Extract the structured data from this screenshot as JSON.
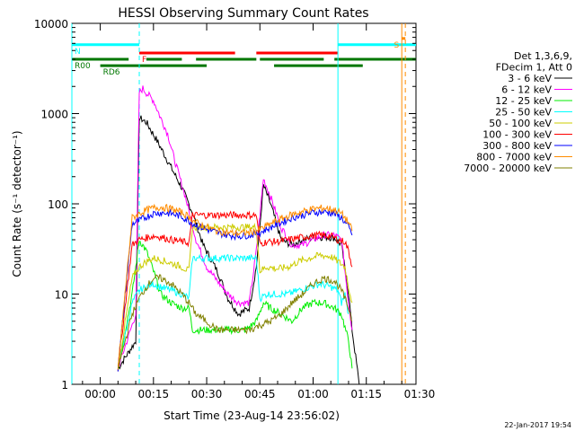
{
  "chart_data": {
    "type": "line",
    "title": "HESSI Observing Summary Count Rates",
    "xlabel": "Start Time (23-Aug-14 23:56:02)",
    "ylabel": "Count Rate (s⁻¹ detector⁻¹)",
    "ylog": true,
    "ylim": [
      1,
      10000
    ],
    "xlim_min": [
      -4,
      93
    ],
    "x_unit": "minutes after start",
    "x_ticks": [
      {
        "m": 4,
        "label": "00:00"
      },
      {
        "m": 19,
        "label": "00:15"
      },
      {
        "m": 34,
        "label": "00:30"
      },
      {
        "m": 49,
        "label": "00:45"
      },
      {
        "m": 64,
        "label": "01:00"
      },
      {
        "m": 79,
        "label": "01:15"
      },
      {
        "m": 94,
        "label": "01:30"
      }
    ],
    "y_ticks": [
      {
        "v": 1,
        "label": "1"
      },
      {
        "v": 10,
        "label": "10"
      },
      {
        "v": 100,
        "label": "100"
      },
      {
        "v": 1000,
        "label": "1000"
      },
      {
        "v": 10000,
        "label": "10000"
      }
    ],
    "legend_header": [
      "Det 1,3,6,9,",
      "FDecim 1, Att 0"
    ],
    "series": [
      {
        "name": "3 - 6 keV",
        "color": "#000000",
        "points": [
          [
            9,
            1.5
          ],
          [
            14,
            3
          ],
          [
            15,
            900
          ],
          [
            17,
            800
          ],
          [
            20,
            500
          ],
          [
            23,
            300
          ],
          [
            27,
            150
          ],
          [
            30,
            80
          ],
          [
            33,
            35
          ],
          [
            37,
            18
          ],
          [
            40,
            9
          ],
          [
            43,
            6
          ],
          [
            46,
            7
          ],
          [
            48,
            20
          ],
          [
            50,
            160
          ],
          [
            52,
            100
          ],
          [
            55,
            40
          ],
          [
            58,
            35
          ],
          [
            61,
            40
          ],
          [
            64,
            42
          ],
          [
            67,
            43
          ],
          [
            70,
            42
          ],
          [
            72,
            35
          ],
          [
            74,
            10
          ],
          [
            75,
            4
          ],
          [
            76,
            2
          ],
          [
            77,
            1
          ]
        ]
      },
      {
        "name": "6 - 12 keV",
        "color": "#ff00ff",
        "points": [
          [
            9,
            1.5
          ],
          [
            14,
            6
          ],
          [
            15,
            1700
          ],
          [
            16,
            1900
          ],
          [
            17,
            1700
          ],
          [
            19,
            1400
          ],
          [
            21,
            900
          ],
          [
            23,
            600
          ],
          [
            25,
            300
          ],
          [
            28,
            120
          ],
          [
            31,
            40
          ],
          [
            34,
            20
          ],
          [
            37,
            14
          ],
          [
            40,
            10
          ],
          [
            43,
            8
          ],
          [
            46,
            8
          ],
          [
            48,
            30
          ],
          [
            50,
            190
          ],
          [
            52,
            120
          ],
          [
            55,
            55
          ],
          [
            58,
            35
          ],
          [
            61,
            35
          ],
          [
            64,
            40
          ],
          [
            67,
            45
          ],
          [
            70,
            45
          ],
          [
            72,
            40
          ],
          [
            74,
            8
          ],
          [
            75,
            4
          ]
        ]
      },
      {
        "name": "12 - 25 keV",
        "color": "#00ee00",
        "points": [
          [
            9,
            1.5
          ],
          [
            13,
            10
          ],
          [
            15,
            40
          ],
          [
            17,
            30
          ],
          [
            19,
            18
          ],
          [
            21,
            10
          ],
          [
            24,
            8
          ],
          [
            27,
            7
          ],
          [
            29,
            7
          ],
          [
            30,
            4
          ],
          [
            33,
            4
          ],
          [
            36,
            4
          ],
          [
            39,
            4
          ],
          [
            42,
            4
          ],
          [
            45,
            4
          ],
          [
            48,
            5
          ],
          [
            50,
            8
          ],
          [
            52,
            7
          ],
          [
            55,
            6
          ],
          [
            58,
            5
          ],
          [
            61,
            7
          ],
          [
            64,
            8
          ],
          [
            67,
            8
          ],
          [
            70,
            7
          ],
          [
            72,
            6
          ],
          [
            74,
            3
          ],
          [
            75,
            1.5
          ]
        ]
      },
      {
        "name": "25 - 50 keV",
        "color": "#00ffff",
        "points": [
          [
            9,
            1.5
          ],
          [
            13,
            8
          ],
          [
            15,
            11
          ],
          [
            17,
            12
          ],
          [
            19,
            13
          ],
          [
            21,
            12
          ],
          [
            24,
            11
          ],
          [
            27,
            10
          ],
          [
            29,
            9
          ],
          [
            30,
            25
          ],
          [
            33,
            25
          ],
          [
            36,
            25
          ],
          [
            39,
            25
          ],
          [
            42,
            25
          ],
          [
            45,
            25
          ],
          [
            48,
            25
          ],
          [
            49,
            9
          ],
          [
            51,
            10
          ],
          [
            54,
            10
          ],
          [
            57,
            10
          ],
          [
            60,
            11
          ],
          [
            63,
            12
          ],
          [
            66,
            13
          ],
          [
            69,
            12
          ],
          [
            71,
            11
          ],
          [
            72,
            8
          ],
          [
            73,
            10
          ],
          [
            74,
            6
          ]
        ]
      },
      {
        "name": "50 - 100 keV",
        "color": "#cccc00",
        "points": [
          [
            9,
            1.5
          ],
          [
            13,
            15
          ],
          [
            15,
            20
          ],
          [
            17,
            23
          ],
          [
            19,
            25
          ],
          [
            21,
            24
          ],
          [
            24,
            22
          ],
          [
            27,
            20
          ],
          [
            29,
            18
          ],
          [
            30,
            55
          ],
          [
            33,
            55
          ],
          [
            36,
            55
          ],
          [
            39,
            55
          ],
          [
            42,
            55
          ],
          [
            45,
            55
          ],
          [
            48,
            55
          ],
          [
            49,
            18
          ],
          [
            51,
            20
          ],
          [
            54,
            19
          ],
          [
            57,
            20
          ],
          [
            60,
            23
          ],
          [
            63,
            25
          ],
          [
            66,
            27
          ],
          [
            69,
            26
          ],
          [
            71,
            23
          ],
          [
            73,
            20
          ],
          [
            74,
            12
          ],
          [
            75,
            8
          ]
        ]
      },
      {
        "name": "100 - 300 keV",
        "color": "#ff0000",
        "points": [
          [
            9,
            1.5
          ],
          [
            13,
            35
          ],
          [
            15,
            40
          ],
          [
            17,
            42
          ],
          [
            19,
            44
          ],
          [
            21,
            43
          ],
          [
            24,
            40
          ],
          [
            27,
            38
          ],
          [
            29,
            37
          ],
          [
            30,
            75
          ],
          [
            33,
            75
          ],
          [
            36,
            75
          ],
          [
            39,
            75
          ],
          [
            42,
            75
          ],
          [
            45,
            75
          ],
          [
            48,
            75
          ],
          [
            49,
            36
          ],
          [
            51,
            38
          ],
          [
            54,
            38
          ],
          [
            57,
            40
          ],
          [
            60,
            42
          ],
          [
            63,
            44
          ],
          [
            66,
            45
          ],
          [
            69,
            44
          ],
          [
            71,
            40
          ],
          [
            73,
            38
          ],
          [
            74,
            30
          ],
          [
            75,
            20
          ]
        ]
      },
      {
        "name": "300 - 800 keV",
        "color": "#0000ff",
        "points": [
          [
            9,
            1.5
          ],
          [
            13,
            60
          ],
          [
            15,
            65
          ],
          [
            17,
            72
          ],
          [
            19,
            78
          ],
          [
            21,
            80
          ],
          [
            24,
            78
          ],
          [
            27,
            72
          ],
          [
            29,
            65
          ],
          [
            31,
            58
          ],
          [
            34,
            52
          ],
          [
            37,
            48
          ],
          [
            40,
            45
          ],
          [
            43,
            44
          ],
          [
            46,
            45
          ],
          [
            49,
            48
          ],
          [
            52,
            55
          ],
          [
            55,
            62
          ],
          [
            58,
            70
          ],
          [
            61,
            75
          ],
          [
            64,
            80
          ],
          [
            67,
            82
          ],
          [
            70,
            78
          ],
          [
            72,
            70
          ],
          [
            74,
            55
          ],
          [
            75,
            45
          ]
        ]
      },
      {
        "name": "800 - 7000 keV",
        "color": "#ff8c00",
        "points": [
          [
            9,
            1.5
          ],
          [
            13,
            70
          ],
          [
            15,
            78
          ],
          [
            17,
            85
          ],
          [
            19,
            90
          ],
          [
            21,
            92
          ],
          [
            24,
            88
          ],
          [
            27,
            80
          ],
          [
            29,
            72
          ],
          [
            31,
            62
          ],
          [
            34,
            55
          ],
          [
            37,
            50
          ],
          [
            40,
            48
          ],
          [
            43,
            47
          ],
          [
            46,
            48
          ],
          [
            49,
            52
          ],
          [
            52,
            60
          ],
          [
            55,
            68
          ],
          [
            58,
            76
          ],
          [
            61,
            82
          ],
          [
            64,
            88
          ],
          [
            67,
            90
          ],
          [
            70,
            86
          ],
          [
            72,
            78
          ],
          [
            74,
            62
          ],
          [
            75,
            50
          ]
        ]
      },
      {
        "name": "7000 - 20000 keV",
        "color": "#808000",
        "points": [
          [
            9,
            1.5
          ],
          [
            13,
            6
          ],
          [
            15,
            9
          ],
          [
            17,
            12
          ],
          [
            19,
            15
          ],
          [
            21,
            15
          ],
          [
            24,
            13
          ],
          [
            27,
            10
          ],
          [
            29,
            8
          ],
          [
            31,
            6
          ],
          [
            34,
            5
          ],
          [
            37,
            4
          ],
          [
            40,
            4
          ],
          [
            43,
            4
          ],
          [
            46,
            4
          ],
          [
            49,
            4.5
          ],
          [
            52,
            5
          ],
          [
            55,
            6
          ],
          [
            58,
            8
          ],
          [
            61,
            10
          ],
          [
            64,
            13
          ],
          [
            67,
            15
          ],
          [
            70,
            14
          ],
          [
            72,
            11
          ],
          [
            74,
            7
          ],
          [
            75,
            5
          ]
        ]
      }
    ],
    "flags": [
      {
        "label": "N",
        "color": "#00ffff",
        "y": 5800,
        "segs": [
          [
            -4,
            15
          ],
          [
            71,
            93
          ]
        ],
        "label_at": "start"
      },
      {
        "label": "F",
        "color": "#ff0000",
        "y": 4700,
        "segs": [
          [
            15,
            42
          ],
          [
            48,
            71
          ]
        ],
        "label_at": "start"
      },
      {
        "label": "R00",
        "color": "#007700",
        "y": 4000,
        "segs": [
          [
            -4,
            12
          ],
          [
            17,
            27
          ],
          [
            31,
            48
          ],
          [
            49,
            67
          ],
          [
            70,
            93
          ]
        ],
        "label_at": "start"
      },
      {
        "label": "RD6",
        "color": "#007700",
        "y": 3400,
        "segs": [
          [
            4,
            34
          ],
          [
            53,
            78
          ]
        ],
        "label_at": "start"
      },
      {
        "label": "S",
        "color": "#ff8c00",
        "y": 6800,
        "segs": [
          [
            89,
            90
          ]
        ],
        "label_at": "end"
      }
    ],
    "vlines": [
      {
        "m": -4,
        "color": "#00ffff",
        "dashed": false
      },
      {
        "m": 15,
        "color": "#00ffff",
        "dashed": true
      },
      {
        "m": 71,
        "color": "#00ffff",
        "dashed": false
      },
      {
        "m": 89,
        "color": "#ff8c00",
        "dashed": false
      },
      {
        "m": 90,
        "color": "#ff8c00",
        "dashed": true
      }
    ],
    "footer_date": "22-Jan-2017 19:54"
  }
}
